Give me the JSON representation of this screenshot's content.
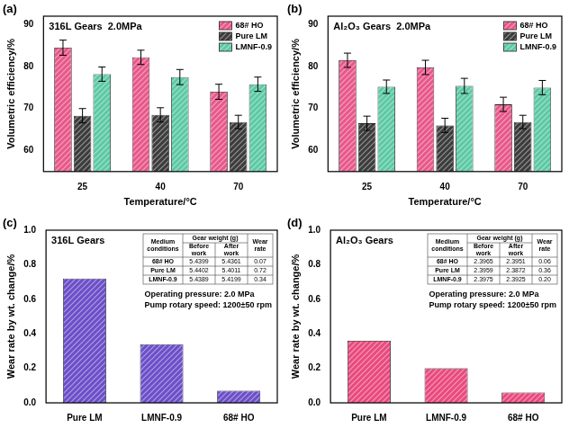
{
  "chart_data": [
    {
      "panel_label": "(a)",
      "type": "bar",
      "title": "316L Gears  2.0MPa",
      "x_label": "Temperature/°C",
      "y_label": "Volumetric efficiency/%",
      "categories": [
        "25",
        "40",
        "70"
      ],
      "series": [
        {
          "name": "68# HO",
          "color": "#e8588a",
          "values": [
            84.5,
            82.2,
            74.0
          ],
          "errors": [
            1.8,
            1.7,
            1.8
          ]
        },
        {
          "name": "Pure LM",
          "color": "#3c3c3c",
          "values": [
            68.3,
            68.5,
            66.8
          ],
          "errors": [
            1.7,
            1.7,
            1.6
          ]
        },
        {
          "name": "LMNF-0.9",
          "color": "#5cc9a5",
          "values": [
            78.2,
            77.5,
            75.8
          ],
          "errors": [
            1.7,
            1.8,
            1.7
          ]
        }
      ],
      "ylim": [
        55,
        92
      ],
      "yticks": [
        60,
        70,
        80,
        90
      ],
      "grid": false,
      "legend": "upper right"
    },
    {
      "panel_label": "(b)",
      "type": "bar",
      "title": "Al₂O₃ Gears  2.0MPa",
      "x_label": "Temperature/°C",
      "y_label": "Volumetric efficiency/%",
      "categories": [
        "25",
        "40",
        "70"
      ],
      "series": [
        {
          "name": "68# HO",
          "color": "#e8588a",
          "values": [
            81.5,
            79.8,
            71.0
          ],
          "errors": [
            1.7,
            1.7,
            1.7
          ]
        },
        {
          "name": "Pure LM",
          "color": "#3c3c3c",
          "values": [
            66.5,
            66.0,
            66.8
          ],
          "errors": [
            1.7,
            1.7,
            1.6
          ]
        },
        {
          "name": "LMNF-0.9",
          "color": "#5cc9a5",
          "values": [
            75.2,
            75.4,
            75.0
          ],
          "errors": [
            1.6,
            1.8,
            1.7
          ]
        }
      ],
      "ylim": [
        55,
        92
      ],
      "yticks": [
        60,
        70,
        80,
        90
      ],
      "grid": false,
      "legend": "upper right"
    },
    {
      "panel_label": "(c)",
      "type": "bar",
      "title": "316L Gears",
      "y_label": "Wear rate by wt. change/%",
      "categories": [
        "Pure LM",
        "LMNF-0.9",
        "68# HO"
      ],
      "values": [
        0.72,
        0.34,
        0.07
      ],
      "color": "#6b4fc8",
      "ylim": [
        0,
        1
      ],
      "yticks": [
        {
          "value": 0,
          "label": "0.0"
        },
        0.2,
        0.4,
        0.6,
        0.8,
        {
          "value": 1,
          "label": "1.0"
        }
      ],
      "grid": false,
      "annotations": [
        "Operating pressure: 2.0 MPa",
        "Pump rotary speed: 1200±50 rpm"
      ],
      "table": {
        "header": [
          "Medium conditions",
          "Gear weight (g)",
          "Wear rate"
        ],
        "subheader": [
          "Before work",
          "After work"
        ],
        "rows": [
          [
            "68# HO",
            "5.4399",
            "5.4361",
            "0.07"
          ],
          [
            "Pure LM",
            "5.4402",
            "5.4011",
            "0.72"
          ],
          [
            "LMNF-0.9",
            "5.4389",
            "5.4199",
            "0.34"
          ]
        ]
      }
    },
    {
      "panel_label": "(d)",
      "type": "bar",
      "title": "Al₂O₃ Gears",
      "y_label": "Wear rate by wt. change/%",
      "categories": [
        "Pure LM",
        "LMNF-0.9",
        "68# HO"
      ],
      "values": [
        0.36,
        0.2,
        0.06
      ],
      "color": "#e94a7e",
      "ylim": [
        0,
        1
      ],
      "yticks": [
        {
          "value": 0,
          "label": "0.0"
        },
        0.2,
        0.4,
        0.6,
        0.8,
        {
          "value": 1,
          "label": "1.0"
        }
      ],
      "grid": false,
      "annotations": [
        "Operating pressure: 2.0 MPa",
        "Pump rotary speed: 1200±50 rpm"
      ],
      "table": {
        "header": [
          "Medium conditions",
          "Gear weight (g)",
          "Wear rate"
        ],
        "subheader": [
          "Before work",
          "After work"
        ],
        "rows": [
          [
            "68# HO",
            "2.3965",
            "2.3951",
            "0.06"
          ],
          [
            "Pure LM",
            "2.3959",
            "2.3872",
            "0.36"
          ],
          [
            "LMNF-0.9",
            "2.3975",
            "2.3925",
            "0.20"
          ]
        ]
      }
    }
  ]
}
